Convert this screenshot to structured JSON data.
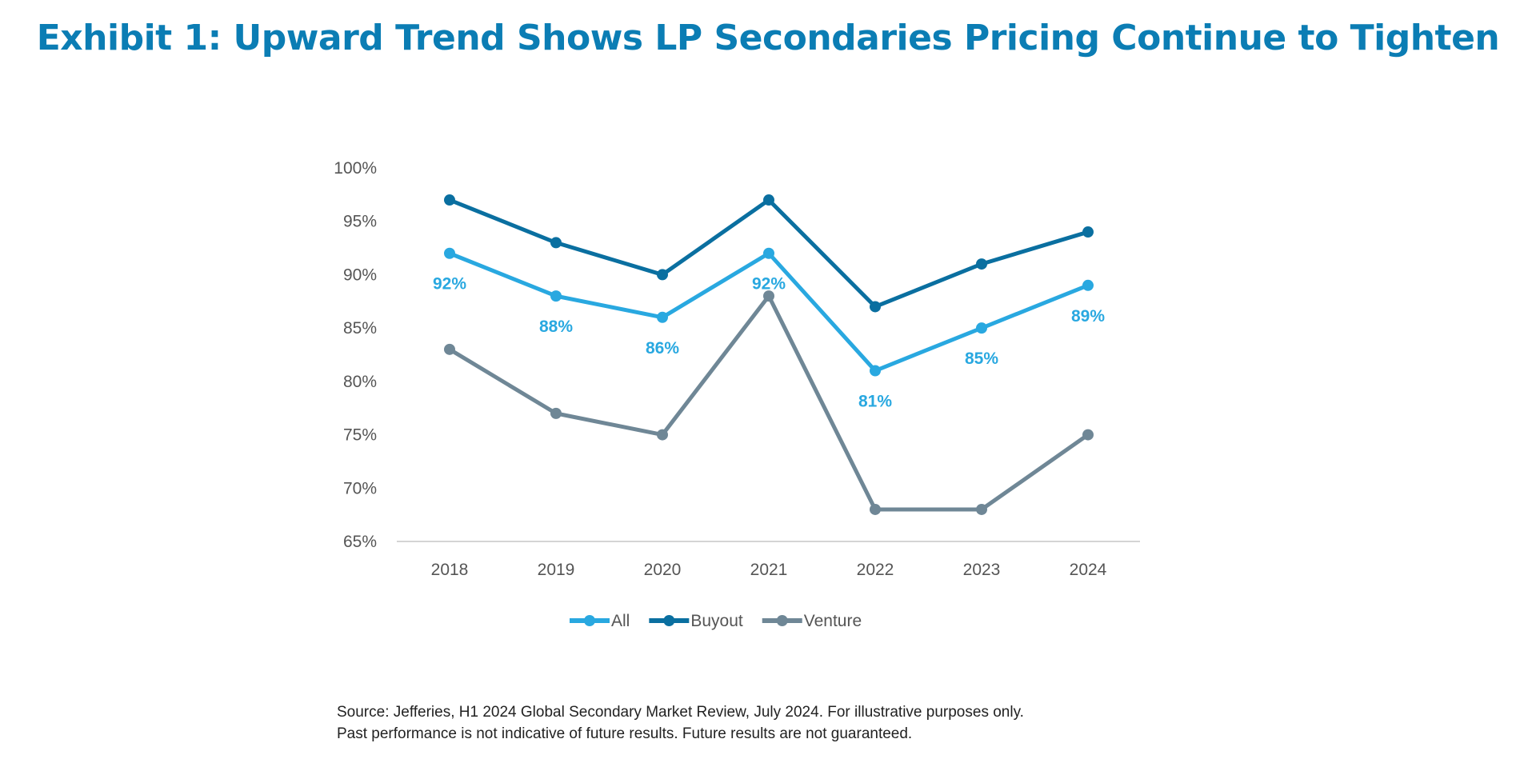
{
  "chart_data": {
    "type": "line",
    "title": "Exhibit 1: Upward Trend Shows LP Secondaries Pricing Continue to Tighten",
    "categories": [
      "2018",
      "2019",
      "2020",
      "2021",
      "2022",
      "2023",
      "2024"
    ],
    "ylim": [
      65,
      100
    ],
    "yticks": [
      65,
      70,
      75,
      80,
      85,
      90,
      95,
      100
    ],
    "ytick_labels": [
      "65%",
      "70%",
      "75%",
      "80%",
      "85%",
      "90%",
      "95%",
      "100%"
    ],
    "grid": false,
    "legend_position": "bottom",
    "series": [
      {
        "name": "All",
        "color": "#29a8e0",
        "values": [
          92,
          88,
          86,
          92,
          81,
          85,
          89
        ],
        "data_labels": [
          "92%",
          "88%",
          "86%",
          "92%",
          "81%",
          "85%",
          "89%"
        ]
      },
      {
        "name": "Buyout",
        "color": "#0a6fa0",
        "values": [
          97,
          93,
          90,
          97,
          87,
          91,
          94
        ]
      },
      {
        "name": "Venture",
        "color": "#6f8796",
        "values": [
          83,
          77,
          75,
          88,
          68,
          68,
          75
        ]
      }
    ]
  },
  "source": {
    "line1": "Source: Jefferies, H1 2024 Global Secondary Market Review, July 2024. For illustrative purposes only.",
    "line2": "Past performance is not indicative of future results. Future results are not guaranteed."
  }
}
